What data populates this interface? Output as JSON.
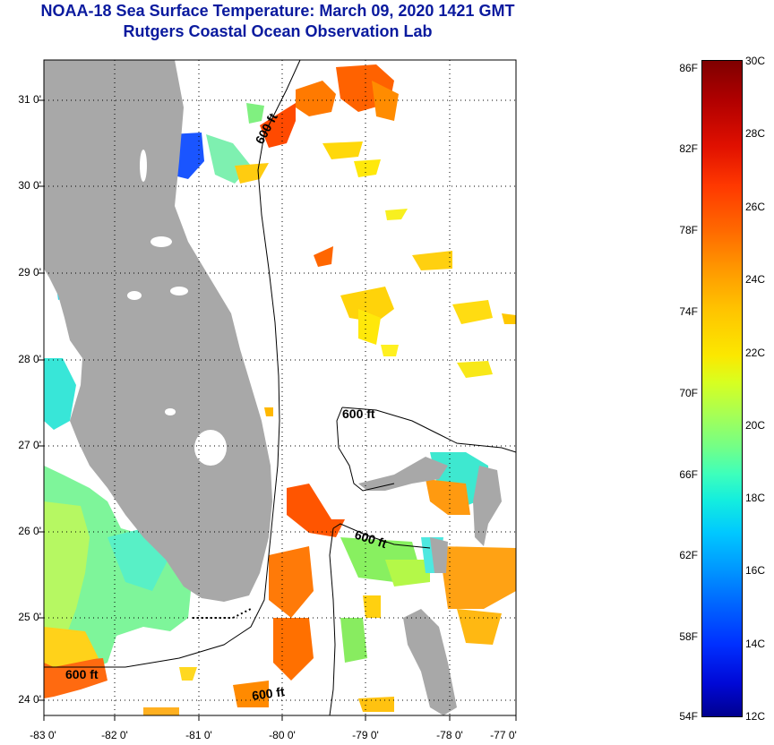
{
  "title": {
    "line1": "NOAA-18 Sea Surface Temperature:  March 09, 2020 1421 GMT",
    "line2": "Rutgers Coastal Ocean Observation Lab"
  },
  "axes": {
    "y_labels": [
      "31 0'",
      "30 0'",
      "29 0'",
      "28 0'",
      "27 0'",
      "26 0'",
      "25 0'",
      "24 0'"
    ],
    "x_labels": [
      "-83 0'",
      "-82 0'",
      "-81 0'",
      "-80 0'",
      "-79 0'",
      "-78 0'",
      "-77 0'"
    ]
  },
  "contours": {
    "label_600a": "600 ft",
    "label_600b": "600 ft",
    "label_600c": "600 ft",
    "label_600d": "600 ft",
    "label_600e": "600 ft"
  },
  "colorbar": {
    "fahrenheit": [
      "86F",
      "82F",
      "78F",
      "74F",
      "70F",
      "66F",
      "62F",
      "58F",
      "54F"
    ],
    "celsius": [
      "30C",
      "28C",
      "26C",
      "24C",
      "22C",
      "20C",
      "18C",
      "16C",
      "14C",
      "12C"
    ]
  },
  "colors": {
    "title": "#0a1a9e",
    "land": "#a8a8a8",
    "warm": "#ff5a00",
    "mild": "#ffc800",
    "cool": "#5cf0a0"
  }
}
